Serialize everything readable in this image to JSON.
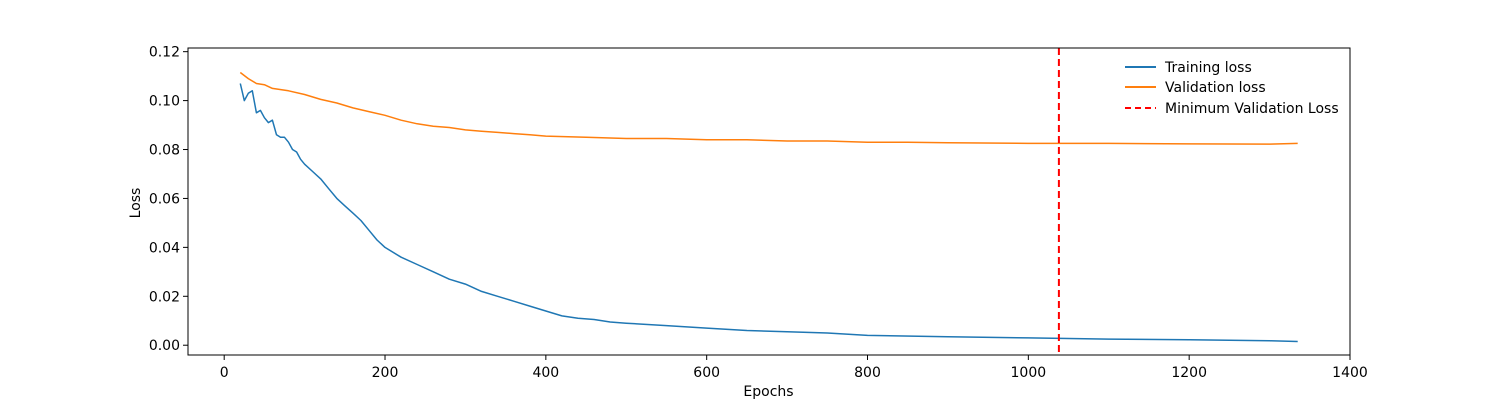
{
  "chart_data": {
    "type": "line",
    "title": "",
    "xlabel": "Epochs",
    "ylabel": "Loss",
    "xlim": [
      -45,
      1400
    ],
    "ylim": [
      -0.004,
      0.1215
    ],
    "xticks": [
      0,
      200,
      400,
      600,
      800,
      1000,
      1200,
      1400
    ],
    "xtick_labels": [
      "0",
      "200",
      "400",
      "600",
      "800",
      "1000",
      "1200",
      "1400"
    ],
    "yticks": [
      0.0,
      0.02,
      0.04,
      0.06,
      0.08,
      0.1,
      0.12
    ],
    "ytick_labels": [
      "0.00",
      "0.02",
      "0.04",
      "0.06",
      "0.08",
      "0.10",
      "0.12"
    ],
    "grid": false,
    "legend_placement": "top-right",
    "legend_frame": false,
    "series": [
      {
        "name": "Training loss",
        "color": "#1f77b4",
        "style": "solid",
        "x": [
          20,
          25,
          30,
          35,
          40,
          45,
          50,
          55,
          60,
          65,
          70,
          75,
          80,
          85,
          90,
          95,
          100,
          110,
          120,
          130,
          140,
          150,
          160,
          170,
          180,
          190,
          200,
          220,
          240,
          260,
          280,
          300,
          320,
          340,
          360,
          380,
          400,
          420,
          440,
          460,
          480,
          500,
          550,
          600,
          650,
          700,
          750,
          800,
          900,
          1000,
          1100,
          1200,
          1300,
          1335
        ],
        "y": [
          0.107,
          0.1,
          0.103,
          0.104,
          0.095,
          0.096,
          0.093,
          0.091,
          0.092,
          0.086,
          0.085,
          0.085,
          0.083,
          0.08,
          0.079,
          0.076,
          0.074,
          0.071,
          0.068,
          0.064,
          0.06,
          0.057,
          0.054,
          0.051,
          0.047,
          0.043,
          0.04,
          0.036,
          0.033,
          0.03,
          0.027,
          0.025,
          0.022,
          0.02,
          0.018,
          0.016,
          0.014,
          0.012,
          0.011,
          0.0105,
          0.0095,
          0.009,
          0.008,
          0.007,
          0.006,
          0.0055,
          0.005,
          0.004,
          0.0035,
          0.003,
          0.0025,
          0.0022,
          0.0018,
          0.0015
        ]
      },
      {
        "name": "Validation loss",
        "color": "#ff7f0e",
        "style": "solid",
        "x": [
          20,
          30,
          40,
          50,
          60,
          80,
          100,
          120,
          140,
          160,
          180,
          200,
          220,
          240,
          260,
          280,
          300,
          320,
          340,
          360,
          380,
          400,
          450,
          500,
          550,
          600,
          650,
          700,
          750,
          800,
          850,
          900,
          1000,
          1100,
          1200,
          1300,
          1335
        ],
        "y": [
          0.1115,
          0.109,
          0.107,
          0.1065,
          0.105,
          0.104,
          0.1025,
          0.1005,
          0.099,
          0.097,
          0.0955,
          0.094,
          0.092,
          0.0905,
          0.0895,
          0.089,
          0.088,
          0.0875,
          0.087,
          0.0865,
          0.086,
          0.0855,
          0.085,
          0.0845,
          0.0845,
          0.084,
          0.084,
          0.0835,
          0.0835,
          0.083,
          0.083,
          0.0828,
          0.0825,
          0.0825,
          0.0823,
          0.0822,
          0.0825
        ]
      }
    ],
    "vertical_lines": [
      {
        "name": "Minimum Validation Loss",
        "x": 1038,
        "color": "#ff0000",
        "style": "dashed"
      }
    ]
  }
}
